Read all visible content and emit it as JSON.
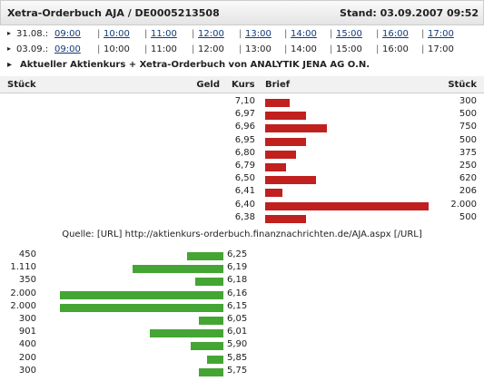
{
  "header": {
    "title": "Xetra-Orderbuch AJA / DE0005213508",
    "stand": "Stand: 03.09.2007 09:52"
  },
  "sessions": [
    {
      "date": "31.08.:",
      "times": [
        "09:00",
        "10:00",
        "11:00",
        "12:00",
        "13:00",
        "14:00",
        "15:00",
        "16:00",
        "17:00"
      ],
      "links": [
        true,
        true,
        true,
        true,
        true,
        true,
        true,
        true,
        true
      ]
    },
    {
      "date": "03.09.:",
      "times": [
        "09:00",
        "10:00",
        "11:00",
        "12:00",
        "13:00",
        "14:00",
        "15:00",
        "16:00",
        "17:00"
      ],
      "links": [
        true,
        false,
        false,
        false,
        false,
        false,
        false,
        false,
        false
      ]
    }
  ],
  "info": "Aktueller Aktienkurs + Xetra-Orderbuch von ANALYTIK JENA AG O.N.",
  "table": {
    "columns": [
      "Stück",
      "Geld",
      "Kurs",
      "Brief",
      "Stück"
    ],
    "ask": [
      {
        "price": "7,10",
        "qty": 300
      },
      {
        "price": "6,97",
        "qty": 500
      },
      {
        "price": "6,96",
        "qty": 750
      },
      {
        "price": "6,95",
        "qty": 500
      },
      {
        "price": "6,80",
        "qty": 375
      },
      {
        "price": "6,79",
        "qty": 250
      },
      {
        "price": "6,50",
        "qty": 620
      },
      {
        "price": "6,41",
        "qty": 206
      },
      {
        "price": "6,40",
        "qty": {
          "value": 2000,
          "label": "2.000"
        }
      },
      {
        "price": "6,38",
        "qty": 500
      }
    ],
    "source": "Quelle: [URL] http://aktienkurs-orderbuch.finanznachrichten.de/AJA.aspx [/URL]",
    "bid": [
      {
        "price": "6,25",
        "qty": 450
      },
      {
        "price": "6,19",
        "qty": {
          "value": 1110,
          "label": "1.110"
        }
      },
      {
        "price": "6,18",
        "qty": 350
      },
      {
        "price": "6,16",
        "qty": {
          "value": 2000,
          "label": "2.000"
        }
      },
      {
        "price": "6,15",
        "qty": {
          "value": 2000,
          "label": "2.000"
        }
      },
      {
        "price": "6,05",
        "qty": 300
      },
      {
        "price": "6,01",
        "qty": 901
      },
      {
        "price": "5,90",
        "qty": 400
      },
      {
        "price": "5,85",
        "qty": 200
      },
      {
        "price": "5,75",
        "qty": 300
      }
    ],
    "ask_color": "#c0201e",
    "bid_color": "#45a534"
  }
}
